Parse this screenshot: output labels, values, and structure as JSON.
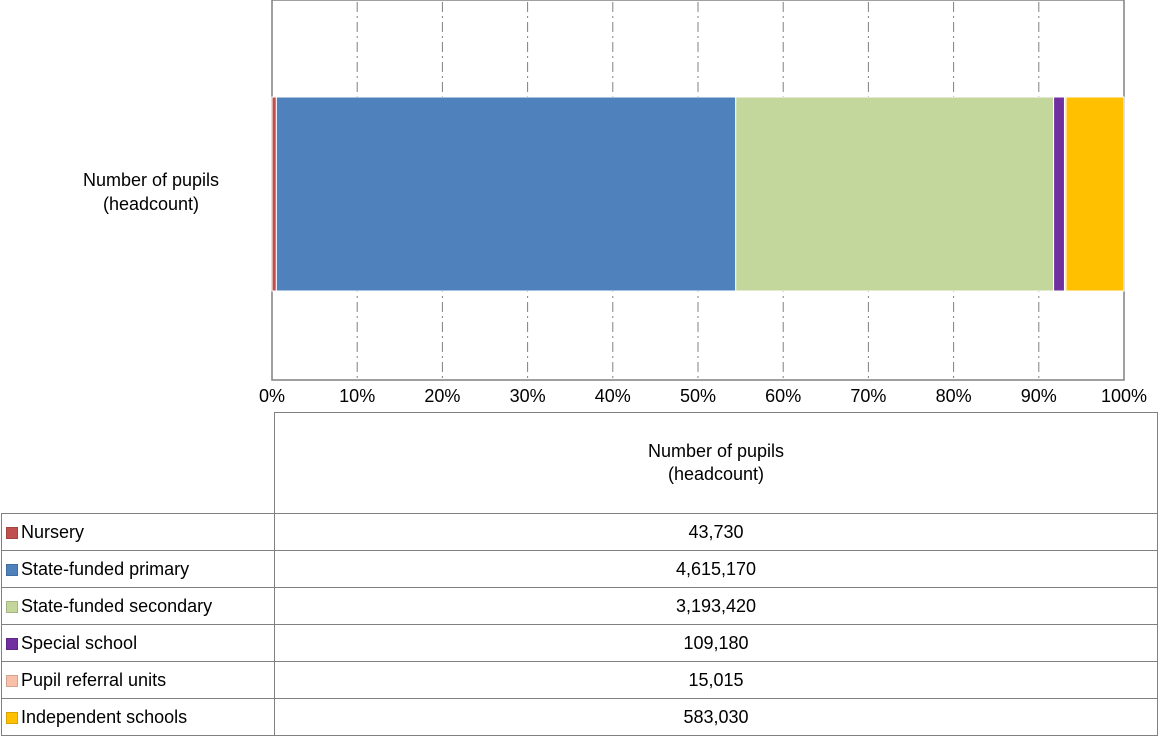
{
  "chart_data": {
    "type": "bar",
    "orientation": "horizontal",
    "stacked": "percent",
    "categories": [
      "Number of pupils (headcount)"
    ],
    "category_label_lines": [
      "Number of pupils",
      "(headcount)"
    ],
    "xlim": [
      0,
      100
    ],
    "x_ticks": [
      "0%",
      "10%",
      "20%",
      "30%",
      "40%",
      "50%",
      "60%",
      "70%",
      "80%",
      "90%",
      "100%"
    ],
    "grid": "vertical dash-dot",
    "legend": "data table below chart",
    "series": [
      {
        "name": "Nursery",
        "values": [
          43730
        ],
        "display": "43,730",
        "color": "#C0504D"
      },
      {
        "name": "State-funded primary",
        "values": [
          4615170
        ],
        "display": "4,615,170",
        "color": "#4F81BD"
      },
      {
        "name": "State-funded secondary",
        "values": [
          3193420
        ],
        "display": "3,193,420",
        "color": "#C3D69B"
      },
      {
        "name": "Special school",
        "values": [
          109180
        ],
        "display": "109,180",
        "color": "#7030A0"
      },
      {
        "name": "Pupil referral units",
        "values": [
          15015
        ],
        "display": "15,015",
        "color": "#F9C0A9"
      },
      {
        "name": "Independent schools",
        "values": [
          583030
        ],
        "display": "583,030",
        "color": "#FFC000"
      }
    ]
  },
  "table": {
    "header_lines": [
      "Number of pupils",
      "(headcount)"
    ]
  }
}
